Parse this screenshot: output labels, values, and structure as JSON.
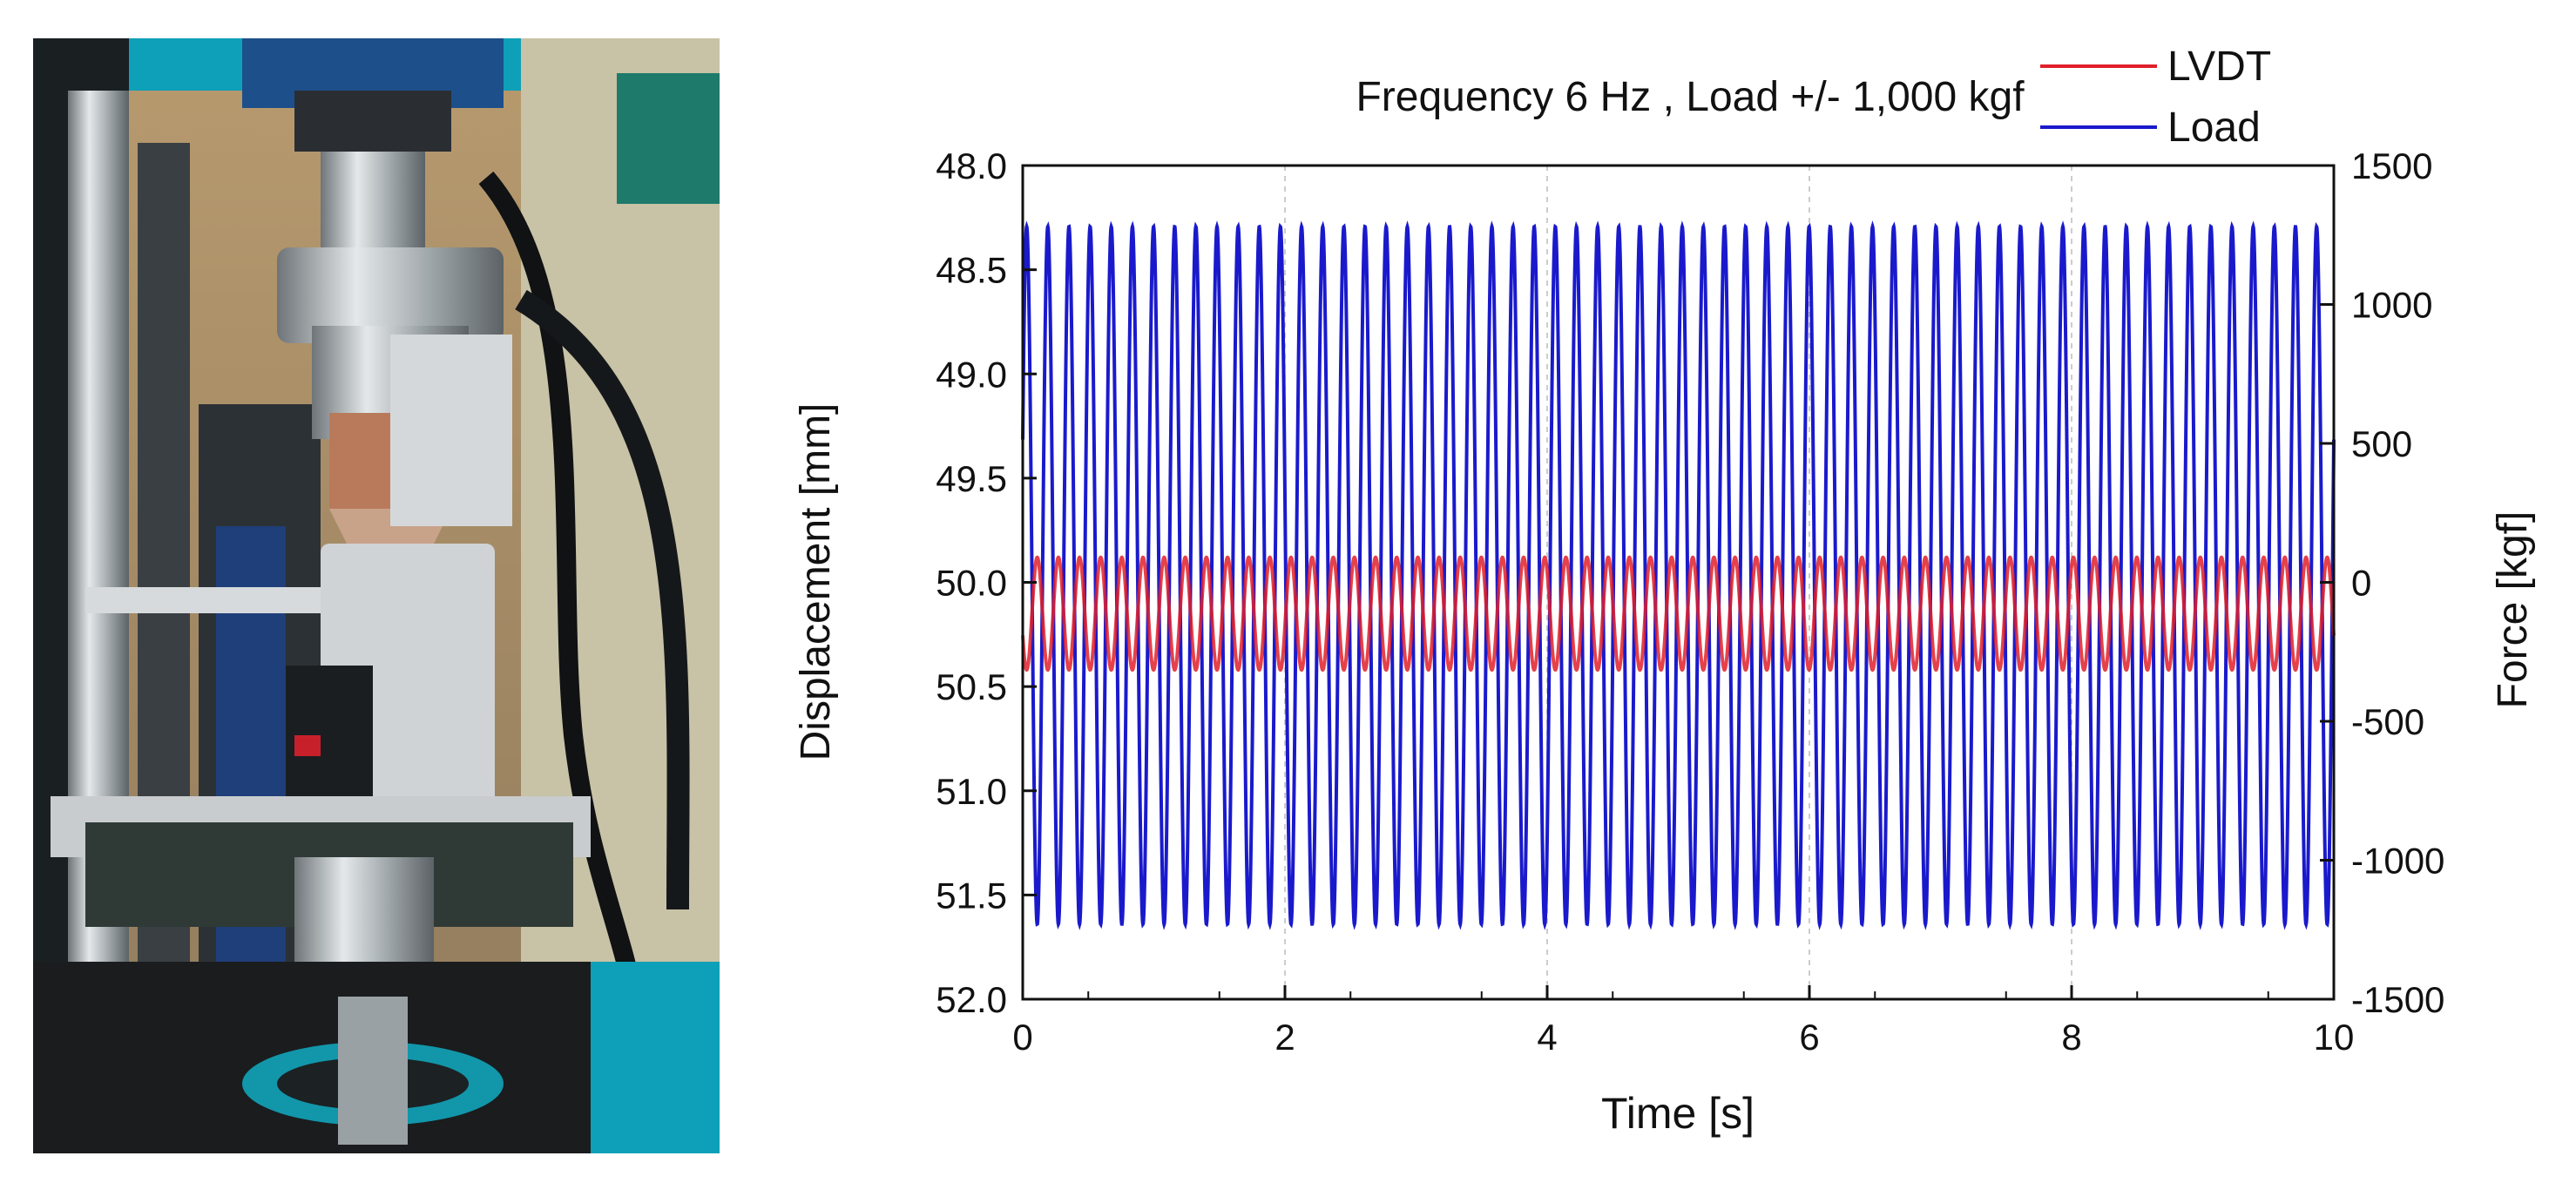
{
  "photo": {
    "description_icon": "fatigue-test-rig-photo"
  },
  "chart_data": {
    "type": "line",
    "title": "Frequency 6 Hz , Load +/- 1,000 kgf",
    "xlabel": "Time [s]",
    "ylabel_left": "Displacement [mm]",
    "ylabel_right": "Force [kgf]",
    "xlim": [
      0,
      10
    ],
    "ylim_left": [
      48.0,
      52.0
    ],
    "ylim_left_inverted": true,
    "ylim_right": [
      -1500,
      1500
    ],
    "x_ticks": [
      "0",
      "2",
      "4",
      "6",
      "8",
      "10"
    ],
    "y_left_ticks": [
      "48.0",
      "48.5",
      "49.0",
      "49.5",
      "50.0",
      "50.5",
      "51.0",
      "51.5",
      "52.0"
    ],
    "y_right_ticks": [
      "1500",
      "1000",
      "500",
      "0",
      "-500",
      "-1000",
      "-1500"
    ],
    "legend_position": "top-right",
    "grid": "dashed vertical",
    "series": [
      {
        "name": "LVDT",
        "axis": "left",
        "color": "#e0202a",
        "frequency_hz": 6.2,
        "min": 49.88,
        "max": 50.42
      },
      {
        "name": "Load",
        "axis": "right",
        "color": "#1a1acc",
        "frequency_hz": 6.2,
        "min": -1230,
        "max": 1280
      }
    ]
  }
}
